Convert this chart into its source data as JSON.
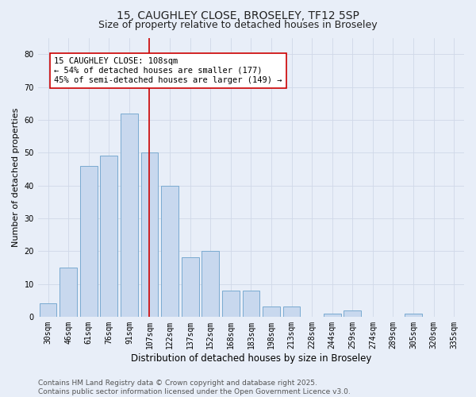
{
  "title_line1": "15, CAUGHLEY CLOSE, BROSELEY, TF12 5SP",
  "title_line2": "Size of property relative to detached houses in Broseley",
  "xlabel": "Distribution of detached houses by size in Broseley",
  "ylabel": "Number of detached properties",
  "bar_labels": [
    "30sqm",
    "46sqm",
    "61sqm",
    "76sqm",
    "91sqm",
    "107sqm",
    "122sqm",
    "137sqm",
    "152sqm",
    "168sqm",
    "183sqm",
    "198sqm",
    "213sqm",
    "228sqm",
    "244sqm",
    "259sqm",
    "274sqm",
    "289sqm",
    "305sqm",
    "320sqm",
    "335sqm"
  ],
  "bar_values": [
    4,
    15,
    46,
    49,
    62,
    50,
    40,
    18,
    20,
    8,
    8,
    3,
    3,
    0,
    1,
    2,
    0,
    0,
    1,
    0,
    0
  ],
  "bar_color": "#c8d8ee",
  "bar_edge_color": "#7aaad0",
  "vline_x_index": 5,
  "vline_color": "#cc0000",
  "annotation_text": "15 CAUGHLEY CLOSE: 108sqm\n← 54% of detached houses are smaller (177)\n45% of semi-detached houses are larger (149) →",
  "annotation_box_facecolor": "#ffffff",
  "annotation_box_edgecolor": "#cc0000",
  "ylim": [
    0,
    85
  ],
  "yticks": [
    0,
    10,
    20,
    30,
    40,
    50,
    60,
    70,
    80
  ],
  "grid_color": "#d0d8e8",
  "bg_color": "#e8eef8",
  "plot_bg_color": "#e8eef8",
  "footer_text": "Contains HM Land Registry data © Crown copyright and database right 2025.\nContains public sector information licensed under the Open Government Licence v3.0.",
  "title_fontsize": 10,
  "subtitle_fontsize": 9,
  "xlabel_fontsize": 8.5,
  "ylabel_fontsize": 8,
  "tick_fontsize": 7,
  "annotation_fontsize": 7.5,
  "footer_fontsize": 6.5
}
